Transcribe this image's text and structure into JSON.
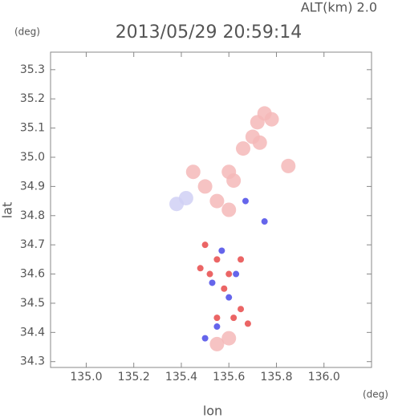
{
  "chart_data": {
    "type": "scatter",
    "title": "2013/05/29 20:59:14",
    "annotation": "ALT(km) 2.0",
    "y_unit": "(deg)",
    "x_unit": "(deg)",
    "xlabel": "lon",
    "ylabel": "lat",
    "xlim": [
      134.85,
      136.2
    ],
    "ylim": [
      34.28,
      35.36
    ],
    "xticks": [
      {
        "value": 135,
        "label": "135.0"
      },
      {
        "value": 135.2,
        "label": "135.2"
      },
      {
        "value": 135.4,
        "label": "135.4"
      },
      {
        "value": 135.6,
        "label": "135.6"
      },
      {
        "value": 135.8,
        "label": "135.8"
      },
      {
        "value": 136,
        "label": "136.0"
      }
    ],
    "yticks": [
      34.3,
      34.4,
      34.5,
      34.6,
      34.7,
      34.8,
      34.9,
      {
        "value": 35,
        "label": "35.0"
      },
      35.1,
      35.2,
      35.3
    ],
    "series": [
      {
        "color": "#f4b8b8",
        "x": [
          135.75,
          135.72,
          135.78,
          135.7,
          135.66,
          135.73,
          135.6,
          135.62,
          135.45,
          135.5,
          135.55,
          135.85,
          135.6,
          135.55,
          135.6
        ],
        "y": [
          35.15,
          35.12,
          35.13,
          35.07,
          35.03,
          35.05,
          34.95,
          34.92,
          34.95,
          34.9,
          34.85,
          34.97,
          34.82,
          34.36,
          34.38
        ]
      },
      {
        "color": "#d0d0f4",
        "x": [
          135.38,
          135.42
        ],
        "y": [
          34.84,
          34.86
        ]
      },
      {
        "color": "#e84a4a",
        "x": [
          135.55,
          135.6,
          135.52,
          135.65,
          135.58,
          135.62,
          135.68,
          135.55,
          135.5,
          135.65,
          135.48
        ],
        "y": [
          34.65,
          34.6,
          34.6,
          34.65,
          34.55,
          34.45,
          34.43,
          34.45,
          34.7,
          34.48,
          34.62
        ]
      },
      {
        "color": "#4a4ae8",
        "x": [
          135.57,
          135.53,
          135.6,
          135.55,
          135.67,
          135.75,
          135.63,
          135.5
        ],
        "y": [
          34.68,
          34.57,
          34.52,
          34.42,
          34.85,
          34.78,
          34.6,
          34.38
        ]
      }
    ]
  }
}
